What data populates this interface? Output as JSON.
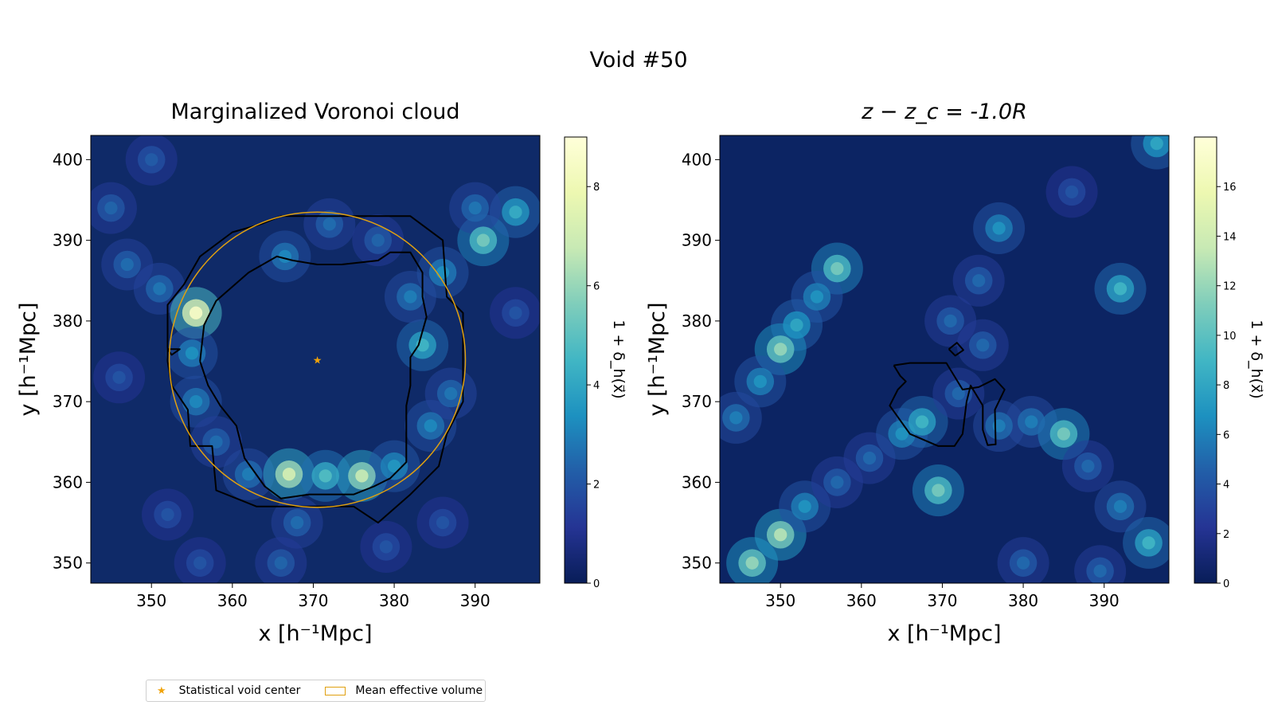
{
  "figure": {
    "suptitle": "Void #50"
  },
  "chart_data": [
    {
      "type": "heatmap",
      "title": "Marginalized Voronoi cloud",
      "xlabel": "x [h⁻¹Mpc]",
      "ylabel": "y [h⁻¹Mpc]",
      "xlim": [
        342.5,
        398
      ],
      "ylim": [
        347.5,
        403
      ],
      "xticks": [
        350,
        360,
        370,
        380,
        390
      ],
      "yticks": [
        350,
        360,
        370,
        380,
        390,
        400
      ],
      "colorbar": {
        "label": "1 + δ_h(x⃗)",
        "range": [
          0,
          9
        ],
        "ticks": [
          0,
          2,
          4,
          6,
          8
        ]
      },
      "void_center": {
        "x": 370.5,
        "y": 375.2,
        "label": "Statistical void center"
      },
      "effective_circle": {
        "cx": 370.5,
        "cy": 375.2,
        "r": 18.3,
        "label": "Mean effective volume"
      },
      "features": [
        {
          "x": 347,
          "y": 387,
          "v": 2.6
        },
        {
          "x": 351,
          "y": 384,
          "v": 2.8
        },
        {
          "x": 355.5,
          "y": 381,
          "v": 8.5
        },
        {
          "x": 355,
          "y": 376,
          "v": 3.4
        },
        {
          "x": 355.5,
          "y": 370,
          "v": 3.2
        },
        {
          "x": 358,
          "y": 365,
          "v": 2.6
        },
        {
          "x": 362,
          "y": 361,
          "v": 3.0
        },
        {
          "x": 367,
          "y": 361,
          "v": 7.2
        },
        {
          "x": 371.5,
          "y": 360.8,
          "v": 4.8
        },
        {
          "x": 376,
          "y": 360.8,
          "v": 6.8
        },
        {
          "x": 380,
          "y": 362,
          "v": 3.6
        },
        {
          "x": 384.5,
          "y": 367,
          "v": 3.2
        },
        {
          "x": 387,
          "y": 371,
          "v": 2.8
        },
        {
          "x": 383.5,
          "y": 377,
          "v": 4.5
        },
        {
          "x": 382,
          "y": 383,
          "v": 3.0
        },
        {
          "x": 386,
          "y": 386,
          "v": 3.4
        },
        {
          "x": 391,
          "y": 390,
          "v": 5.5
        },
        {
          "x": 395,
          "y": 393.5,
          "v": 4.2
        },
        {
          "x": 390,
          "y": 394,
          "v": 2.8
        },
        {
          "x": 366.5,
          "y": 388,
          "v": 3.2
        },
        {
          "x": 372,
          "y": 392,
          "v": 2.6
        },
        {
          "x": 378,
          "y": 390,
          "v": 2.4
        },
        {
          "x": 350,
          "y": 400,
          "v": 2.2
        },
        {
          "x": 345,
          "y": 394,
          "v": 2.4
        },
        {
          "x": 346,
          "y": 373,
          "v": 2.0
        },
        {
          "x": 352,
          "y": 356,
          "v": 2.0
        },
        {
          "x": 368,
          "y": 355,
          "v": 2.6
        },
        {
          "x": 366,
          "y": 350,
          "v": 2.4
        },
        {
          "x": 356,
          "y": 350,
          "v": 2.0
        },
        {
          "x": 386,
          "y": 355,
          "v": 2.0
        },
        {
          "x": 379,
          "y": 352,
          "v": 2.0
        },
        {
          "x": 395,
          "y": 381,
          "v": 2.0
        }
      ],
      "contours": [
        [
          [
            352,
            375
          ],
          [
            352,
            382
          ],
          [
            354,
            384.5
          ],
          [
            356,
            388
          ],
          [
            360,
            391
          ],
          [
            363.5,
            392
          ],
          [
            366,
            393
          ],
          [
            376,
            393
          ],
          [
            382,
            393
          ],
          [
            386,
            390
          ],
          [
            386.5,
            383
          ],
          [
            388.5,
            381
          ],
          [
            388.5,
            370
          ],
          [
            386.5,
            366
          ],
          [
            385.5,
            362
          ],
          [
            382,
            358.5
          ],
          [
            378,
            355
          ],
          [
            375,
            357
          ],
          [
            363,
            357
          ],
          [
            358,
            359
          ],
          [
            357.5,
            364.5
          ],
          [
            354.8,
            364.5
          ],
          [
            354.5,
            369
          ],
          [
            352.5,
            372
          ],
          [
            352,
            375
          ]
        ],
        [
          [
            356,
            375
          ],
          [
            356.5,
            379.5
          ],
          [
            358,
            382.5
          ],
          [
            362,
            386
          ],
          [
            365.5,
            388
          ],
          [
            367.5,
            387.5
          ],
          [
            370.5,
            387
          ],
          [
            373.5,
            387
          ],
          [
            378,
            387.5
          ],
          [
            379.5,
            388.5
          ],
          [
            382,
            388.5
          ],
          [
            383.5,
            386
          ],
          [
            383.5,
            383
          ],
          [
            384,
            380.5
          ],
          [
            383,
            377
          ],
          [
            382,
            375.5
          ],
          [
            382,
            372
          ],
          [
            381.5,
            369.5
          ],
          [
            381.5,
            366
          ],
          [
            381.5,
            362.5
          ],
          [
            379.5,
            360.5
          ],
          [
            377.5,
            359.5
          ],
          [
            375,
            358.5
          ],
          [
            369.5,
            358.5
          ],
          [
            366,
            358
          ],
          [
            364,
            359.5
          ],
          [
            361.5,
            363
          ],
          [
            360.5,
            367
          ],
          [
            358.5,
            369.5
          ],
          [
            357,
            372
          ],
          [
            356,
            375
          ]
        ],
        [
          [
            352,
            376.5
          ],
          [
            353.5,
            376.5
          ],
          [
            352.5,
            375.8
          ],
          [
            352,
            376.5
          ]
        ]
      ]
    },
    {
      "type": "heatmap",
      "title": "z − z_c = -1.0R",
      "xlabel": "x [h⁻¹Mpc]",
      "ylabel": "y [h⁻¹Mpc]",
      "xlim": [
        342.5,
        398
      ],
      "ylim": [
        347.5,
        403
      ],
      "xticks": [
        350,
        360,
        370,
        380,
        390
      ],
      "yticks": [
        350,
        360,
        370,
        380,
        390,
        400
      ],
      "colorbar": {
        "label": "1 + δ_h(x⃗)",
        "range": [
          0,
          18
        ],
        "ticks": [
          0,
          2,
          4,
          6,
          8,
          10,
          12,
          14,
          16
        ]
      },
      "features": [
        {
          "x": 357,
          "y": 386.5,
          "v": 11
        },
        {
          "x": 354.5,
          "y": 383,
          "v": 7
        },
        {
          "x": 352,
          "y": 379.5,
          "v": 8
        },
        {
          "x": 350,
          "y": 376.5,
          "v": 12
        },
        {
          "x": 347.5,
          "y": 372.5,
          "v": 7
        },
        {
          "x": 344.5,
          "y": 368,
          "v": 6
        },
        {
          "x": 346.5,
          "y": 350,
          "v": 12
        },
        {
          "x": 350,
          "y": 353.5,
          "v": 13
        },
        {
          "x": 353,
          "y": 357,
          "v": 7
        },
        {
          "x": 357,
          "y": 360,
          "v": 5
        },
        {
          "x": 361,
          "y": 363,
          "v": 5
        },
        {
          "x": 365,
          "y": 366,
          "v": 7
        },
        {
          "x": 367.5,
          "y": 367.5,
          "v": 9
        },
        {
          "x": 369.5,
          "y": 359,
          "v": 11
        },
        {
          "x": 372,
          "y": 371,
          "v": 5
        },
        {
          "x": 375,
          "y": 377,
          "v": 5
        },
        {
          "x": 371,
          "y": 380,
          "v": 5
        },
        {
          "x": 374.5,
          "y": 385,
          "v": 5
        },
        {
          "x": 377,
          "y": 391.5,
          "v": 7
        },
        {
          "x": 377,
          "y": 367,
          "v": 6
        },
        {
          "x": 381,
          "y": 367.5,
          "v": 6
        },
        {
          "x": 385,
          "y": 366,
          "v": 11
        },
        {
          "x": 388,
          "y": 362,
          "v": 5
        },
        {
          "x": 392,
          "y": 357,
          "v": 6
        },
        {
          "x": 395.5,
          "y": 352.5,
          "v": 9
        },
        {
          "x": 392,
          "y": 384,
          "v": 9
        },
        {
          "x": 396.5,
          "y": 402,
          "v": 8
        },
        {
          "x": 380,
          "y": 350,
          "v": 5
        },
        {
          "x": 389.5,
          "y": 349,
          "v": 5
        },
        {
          "x": 386,
          "y": 396,
          "v": 4
        }
      ],
      "contours": [
        [
          [
            364,
            374.5
          ],
          [
            366,
            374.8
          ],
          [
            370.5,
            374.8
          ],
          [
            372.5,
            371.5
          ],
          [
            374.5,
            371.8
          ],
          [
            376.5,
            372.8
          ],
          [
            377.7,
            371.5
          ],
          [
            376.5,
            369
          ],
          [
            376.6,
            364.7
          ],
          [
            375.6,
            364.6
          ],
          [
            375,
            366.5
          ],
          [
            375,
            369.5
          ],
          [
            373.5,
            372
          ],
          [
            373,
            370
          ],
          [
            372.5,
            366
          ],
          [
            371.5,
            364.5
          ],
          [
            369.5,
            364.5
          ],
          [
            366,
            366
          ],
          [
            363.5,
            369.5
          ],
          [
            364.5,
            371.5
          ],
          [
            365.5,
            372.5
          ],
          [
            364.8,
            373.2
          ],
          [
            364,
            374.5
          ]
        ],
        [
          [
            370.8,
            376.5
          ],
          [
            371.8,
            377.3
          ],
          [
            372.6,
            376.4
          ],
          [
            371.6,
            375.7
          ],
          [
            370.8,
            376.5
          ]
        ]
      ]
    }
  ],
  "legend": {
    "center_label": "Statistical void center",
    "volume_label": "Mean effective volume"
  },
  "colors": {
    "center_star": "#f0a30a",
    "circle": "#e0a010",
    "contour": "#000000"
  }
}
